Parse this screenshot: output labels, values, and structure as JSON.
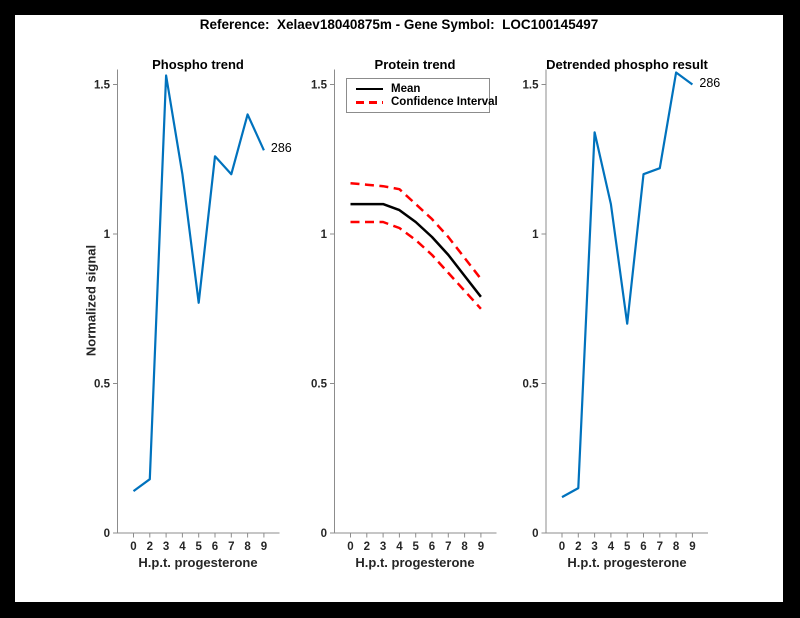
{
  "figure_title": "Reference:  Xelaev18040875m - Gene Symbol:  LOC100145497",
  "colors": {
    "page_background": "#000000",
    "figure_background": "#ffffff",
    "axis": "#8c8c8c",
    "tick_text": "#262626",
    "title_text": "#000000",
    "blue_line": "#0072BD",
    "mean_line": "#000000",
    "confidence_line": "#ff0000"
  },
  "chart_data": {
    "type": "line",
    "x_categories": [
      "0",
      "2",
      "3",
      "4",
      "5",
      "6",
      "7",
      "8",
      "9"
    ],
    "xlabel": "H.p.t. progesterone",
    "ylabel": "Normalized signal",
    "ytick_values": [
      0,
      0.5,
      1,
      1.5
    ],
    "ytick_labels": [
      "0",
      "0.5",
      "1",
      "1.5"
    ],
    "ylim": [
      0,
      1.55
    ],
    "grid": false,
    "subplots": [
      {
        "title": "Phospho trend",
        "series": [
          {
            "name": "phospho-signal",
            "color": "#0072BD",
            "style": "solid",
            "width": 2.2,
            "values": [
              0.14,
              0.18,
              1.53,
              1.2,
              0.77,
              1.26,
              1.2,
              1.4,
              1.28
            ]
          }
        ],
        "annotation": {
          "text": "286",
          "at_index": 8
        }
      },
      {
        "title": "Protein trend",
        "legend": {
          "position": "top-left",
          "entries": [
            {
              "label": "Mean",
              "color": "#000000",
              "style": "solid"
            },
            {
              "label": "Confidence Interval",
              "color": "#ff0000",
              "style": "dashed"
            }
          ]
        },
        "series": [
          {
            "name": "ci-upper",
            "color": "#ff0000",
            "style": "dashed",
            "width": 2.5,
            "values": [
              1.17,
              1.165,
              1.16,
              1.15,
              1.1,
              1.05,
              0.99,
              0.92,
              0.85
            ]
          },
          {
            "name": "ci-lower",
            "color": "#ff0000",
            "style": "dashed",
            "width": 2.5,
            "values": [
              1.04,
              1.04,
              1.04,
              1.02,
              0.98,
              0.93,
              0.87,
              0.81,
              0.75
            ]
          },
          {
            "name": "mean",
            "color": "#000000",
            "style": "solid",
            "width": 2.5,
            "values": [
              1.1,
              1.1,
              1.1,
              1.08,
              1.04,
              0.99,
              0.93,
              0.86,
              0.79
            ]
          }
        ]
      },
      {
        "title": "Detrended phospho result",
        "series": [
          {
            "name": "detrended-signal",
            "color": "#0072BD",
            "style": "solid",
            "width": 2.2,
            "values": [
              0.12,
              0.15,
              1.34,
              1.1,
              0.7,
              1.2,
              1.22,
              1.54,
              1.5
            ]
          }
        ],
        "annotation": {
          "text": "286",
          "at_index": 8
        }
      }
    ]
  }
}
